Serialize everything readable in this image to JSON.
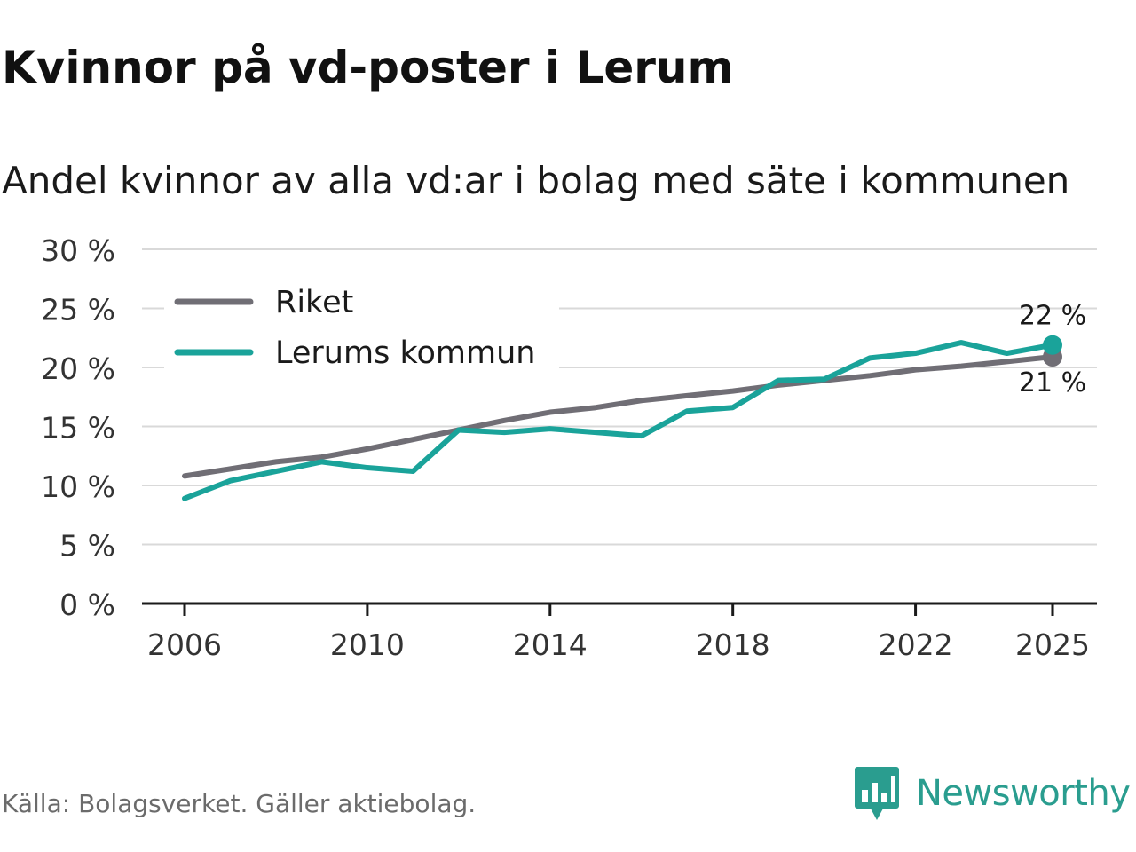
{
  "title": "Kvinnor på vd-poster i Lerum",
  "subtitle": "Andel kvinnor av alla vd:ar i bolag med säte i kommunen",
  "source": "Källa: Bolagsverket. Gäller aktiebolag.",
  "brand": {
    "name": "Newsworthy",
    "icon": "newsworthy-logo-icon",
    "color": "#2a9d8f"
  },
  "chart_data": {
    "type": "line",
    "x": [
      2006,
      2007,
      2008,
      2009,
      2010,
      2011,
      2012,
      2013,
      2014,
      2015,
      2016,
      2017,
      2018,
      2019,
      2020,
      2021,
      2022,
      2023,
      2024,
      2025
    ],
    "x_tick_values": [
      2006,
      2010,
      2014,
      2018,
      2022,
      2025
    ],
    "x_tick_labels": [
      "2006",
      "2010",
      "2014",
      "2018",
      "2022",
      "2025"
    ],
    "xlim": [
      2006,
      2025
    ],
    "y_tick_values": [
      0,
      5,
      10,
      15,
      20,
      25,
      30
    ],
    "y_tick_labels": [
      "0 %",
      "5 %",
      "10 %",
      "15 %",
      "20 %",
      "25 %",
      "30 %"
    ],
    "ylim": [
      0,
      30
    ],
    "grid": true,
    "legend_position": "top-left",
    "series": [
      {
        "name": "Riket",
        "color": "#706e75",
        "values": [
          10.8,
          11.4,
          12.0,
          12.4,
          13.1,
          13.9,
          14.7,
          15.5,
          16.2,
          16.6,
          17.2,
          17.6,
          18.0,
          18.5,
          18.9,
          19.3,
          19.8,
          20.1,
          20.5,
          20.9
        ],
        "end_label": "21 %",
        "end_label_position": "below"
      },
      {
        "name": "Lerums kommun",
        "color": "#1aa39a",
        "values": [
          8.9,
          10.4,
          11.2,
          12.0,
          11.5,
          11.2,
          14.7,
          14.5,
          14.8,
          14.5,
          14.2,
          16.3,
          16.6,
          18.9,
          19.0,
          20.8,
          21.2,
          22.1,
          21.2,
          21.9
        ],
        "end_label": "22 %",
        "end_label_position": "above"
      }
    ]
  }
}
